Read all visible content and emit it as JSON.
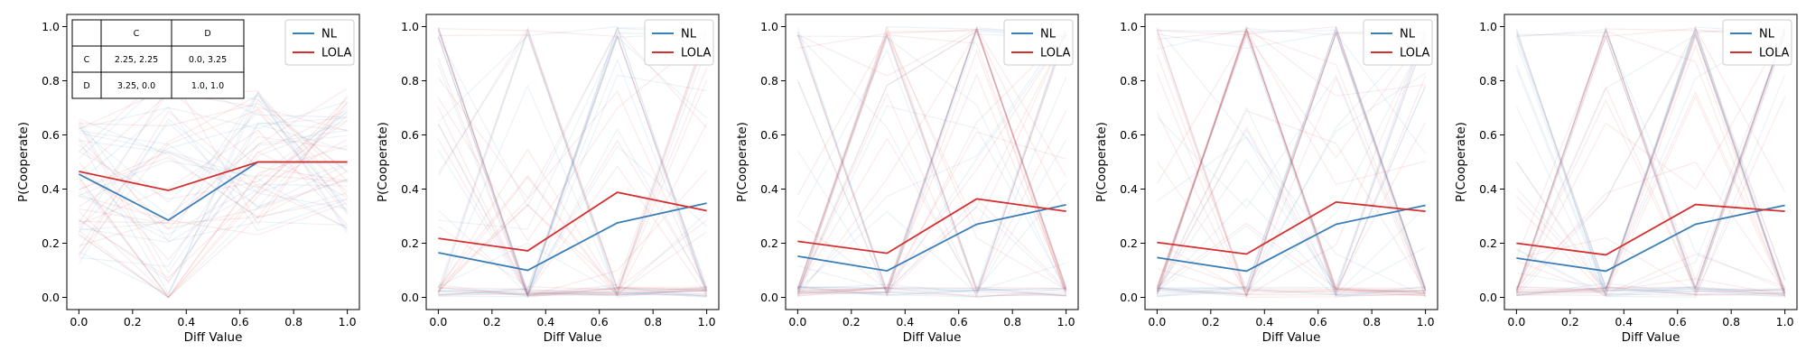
{
  "figure": {
    "colors": {
      "NL": "#3b7fb8",
      "LOLA": "#d62f2f"
    }
  },
  "chart_data": [
    {
      "type": "line",
      "xlabel": "Diff Value",
      "ylabel": "P(Cooperate)",
      "xlim": [
        0,
        1
      ],
      "ylim": [
        0,
        1
      ],
      "xticks": [
        "0.0",
        "0.2",
        "0.4",
        "0.6",
        "0.8",
        "1.0"
      ],
      "yticks": [
        "0.0",
        "0.2",
        "0.4",
        "0.6",
        "0.8",
        "1.0"
      ],
      "x": [
        0,
        0.333,
        0.667,
        1.0
      ],
      "legend": {
        "placement": "top-right",
        "entries": [
          "NL",
          "LOLA"
        ]
      },
      "series": [
        {
          "name": "NL",
          "values": [
            0.455,
            0.285,
            0.5,
            0.5
          ]
        },
        {
          "name": "LOLA",
          "values": [
            0.465,
            0.395,
            0.5,
            0.5
          ]
        }
      ],
      "payoff_table": {
        "placement": "top-left",
        "col_headers": [
          "C",
          "D"
        ],
        "rows": [
          {
            "label": "C",
            "cells": [
              "2.25, 2.25",
              "0.0, 3.25"
            ]
          },
          {
            "label": "D",
            "cells": [
              "3.25, 0.0",
              "1.0, 1.0"
            ]
          }
        ]
      }
    },
    {
      "type": "line",
      "xlabel": "Diff Value",
      "ylabel": "P(Cooperate)",
      "xlim": [
        0,
        1
      ],
      "ylim": [
        0,
        1
      ],
      "xticks": [
        "0.0",
        "0.2",
        "0.4",
        "0.6",
        "0.8",
        "1.0"
      ],
      "yticks": [
        "0.0",
        "0.2",
        "0.4",
        "0.6",
        "0.8",
        "1.0"
      ],
      "x": [
        0,
        0.333,
        0.667,
        1.0
      ],
      "legend": {
        "placement": "top-right",
        "entries": [
          "NL",
          "LOLA"
        ]
      },
      "series": [
        {
          "name": "NL",
          "values": [
            0.165,
            0.1,
            0.275,
            0.348
          ]
        },
        {
          "name": "LOLA",
          "values": [
            0.218,
            0.172,
            0.388,
            0.32
          ]
        }
      ]
    },
    {
      "type": "line",
      "xlabel": "Diff Value",
      "ylabel": "P(Cooperate)",
      "xlim": [
        0,
        1
      ],
      "ylim": [
        0,
        1
      ],
      "xticks": [
        "0.0",
        "0.2",
        "0.4",
        "0.6",
        "0.8",
        "1.0"
      ],
      "yticks": [
        "0.0",
        "0.2",
        "0.4",
        "0.6",
        "0.8",
        "1.0"
      ],
      "x": [
        0,
        0.333,
        0.667,
        1.0
      ],
      "legend": {
        "placement": "top-right",
        "entries": [
          "NL",
          "LOLA"
        ]
      },
      "series": [
        {
          "name": "NL",
          "values": [
            0.152,
            0.098,
            0.27,
            0.342
          ]
        },
        {
          "name": "LOLA",
          "values": [
            0.207,
            0.163,
            0.364,
            0.318
          ]
        }
      ]
    },
    {
      "type": "line",
      "xlabel": "Diff Value",
      "ylabel": "P(Cooperate)",
      "xlim": [
        0,
        1
      ],
      "ylim": [
        0,
        1
      ],
      "xticks": [
        "0.0",
        "0.2",
        "0.4",
        "0.6",
        "0.8",
        "1.0"
      ],
      "yticks": [
        "0.0",
        "0.2",
        "0.4",
        "0.6",
        "0.8",
        "1.0"
      ],
      "x": [
        0,
        0.333,
        0.667,
        1.0
      ],
      "legend": {
        "placement": "top-right",
        "entries": [
          "NL",
          "LOLA"
        ]
      },
      "series": [
        {
          "name": "NL",
          "values": [
            0.147,
            0.097,
            0.27,
            0.34
          ]
        },
        {
          "name": "LOLA",
          "values": [
            0.203,
            0.16,
            0.352,
            0.318
          ]
        }
      ]
    },
    {
      "type": "line",
      "xlabel": "Diff Value",
      "ylabel": "P(Cooperate)",
      "xlim": [
        0,
        1
      ],
      "ylim": [
        0,
        1
      ],
      "xticks": [
        "0.0",
        "0.2",
        "0.4",
        "0.6",
        "0.8",
        "1.0"
      ],
      "yticks": [
        "0.0",
        "0.2",
        "0.4",
        "0.6",
        "0.8",
        "1.0"
      ],
      "x": [
        0,
        0.333,
        0.667,
        1.0
      ],
      "legend": {
        "placement": "top-right",
        "entries": [
          "NL",
          "LOLA"
        ]
      },
      "series": [
        {
          "name": "NL",
          "values": [
            0.145,
            0.097,
            0.27,
            0.34
          ]
        },
        {
          "name": "LOLA",
          "values": [
            0.2,
            0.157,
            0.343,
            0.318
          ]
        }
      ]
    }
  ]
}
